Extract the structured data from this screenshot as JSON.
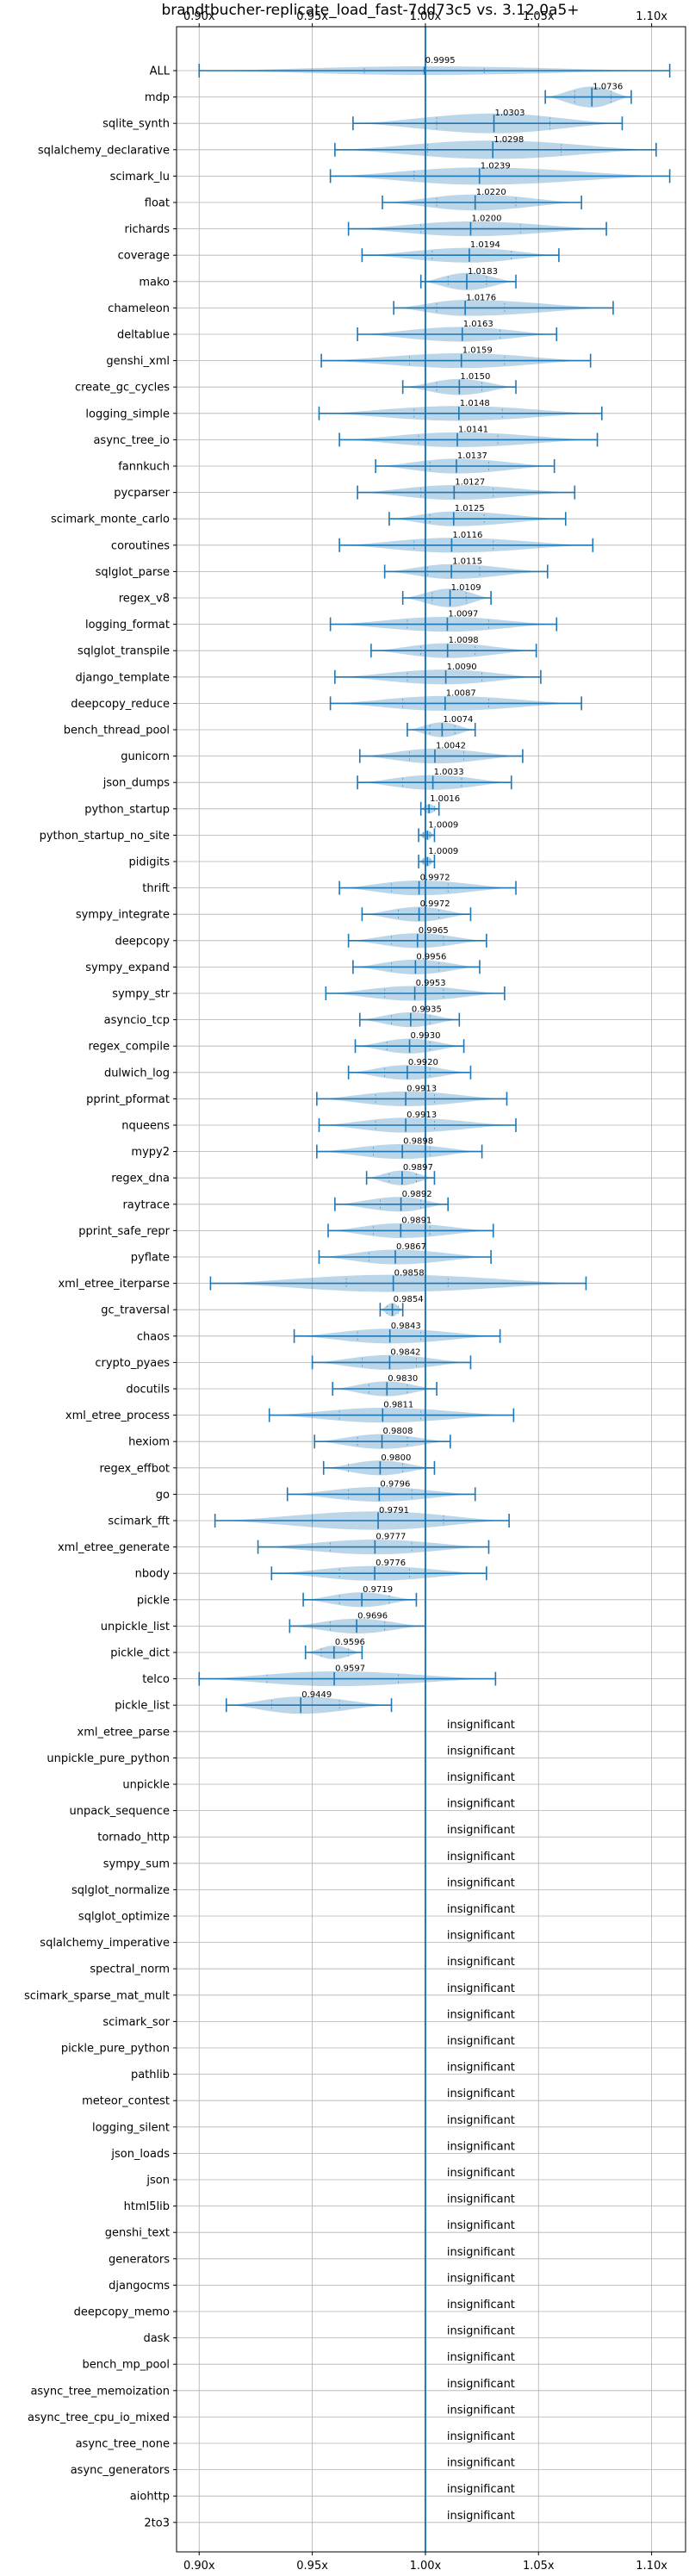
{
  "chart_data": {
    "type": "violin",
    "title": "brandtbucher-replicate_load_fast-7dd73c5 vs. 3.12.0a5+",
    "xlim": [
      0.89,
      1.115
    ],
    "xticks": [
      0.9,
      0.95,
      1.0,
      1.05,
      1.1
    ],
    "xtick_labels": [
      "0.90x",
      "0.95x",
      "1.00x",
      "1.05x",
      "1.10x"
    ],
    "reference_line": 1.0,
    "grid": true,
    "insignificant_label": "insignificant",
    "rows": [
      {
        "name": "ALL",
        "median": 0.9995,
        "label": "0.9995",
        "min": 0.9,
        "max": 1.108,
        "q1": 0.973,
        "q3": 1.026,
        "width": 0.35
      },
      {
        "name": "mdp",
        "median": 1.0736,
        "label": "1.0736",
        "min": 1.053,
        "max": 1.091,
        "q1": 1.066,
        "q3": 1.082,
        "width": 0.85
      },
      {
        "name": "sqlite_synth",
        "median": 1.0303,
        "label": "1.0303",
        "min": 0.968,
        "max": 1.087,
        "q1": 1.005,
        "q3": 1.055,
        "width": 0.8
      },
      {
        "name": "sqlalchemy_declarative",
        "median": 1.0298,
        "label": "1.0298",
        "min": 0.96,
        "max": 1.102,
        "q1": 1.001,
        "q3": 1.06,
        "width": 0.75
      },
      {
        "name": "scimark_lu",
        "median": 1.0239,
        "label": "1.0239",
        "min": 0.958,
        "max": 1.108,
        "q1": 0.995,
        "q3": 1.05,
        "width": 0.7
      },
      {
        "name": "float",
        "median": 1.022,
        "label": "1.0220",
        "min": 0.981,
        "max": 1.069,
        "q1": 1.005,
        "q3": 1.04,
        "width": 0.65
      },
      {
        "name": "richards",
        "median": 1.02,
        "label": "1.0200",
        "min": 0.966,
        "max": 1.08,
        "q1": 0.998,
        "q3": 1.042,
        "width": 0.6
      },
      {
        "name": "coverage",
        "median": 1.0194,
        "label": "1.0194",
        "min": 0.972,
        "max": 1.059,
        "q1": 1.003,
        "q3": 1.038,
        "width": 0.6
      },
      {
        "name": "mako",
        "median": 1.0183,
        "label": "1.0183",
        "min": 0.998,
        "max": 1.04,
        "q1": 1.01,
        "q3": 1.027,
        "width": 0.7
      },
      {
        "name": "chameleon",
        "median": 1.0176,
        "label": "1.0176",
        "min": 0.986,
        "max": 1.083,
        "q1": 1.005,
        "q3": 1.035,
        "width": 0.65
      },
      {
        "name": "deltablue",
        "median": 1.0163,
        "label": "1.0163",
        "min": 0.97,
        "max": 1.058,
        "q1": 1.0,
        "q3": 1.033,
        "width": 0.6
      },
      {
        "name": "genshi_xml",
        "median": 1.0159,
        "label": "1.0159",
        "min": 0.954,
        "max": 1.073,
        "q1": 0.993,
        "q3": 1.035,
        "width": 0.6
      },
      {
        "name": "create_gc_cycles",
        "median": 1.015,
        "label": "1.0150",
        "min": 0.99,
        "max": 1.04,
        "q1": 1.005,
        "q3": 1.025,
        "width": 0.65
      },
      {
        "name": "logging_simple",
        "median": 1.0148,
        "label": "1.0148",
        "min": 0.953,
        "max": 1.078,
        "q1": 0.995,
        "q3": 1.034,
        "width": 0.6
      },
      {
        "name": "async_tree_io",
        "median": 1.0141,
        "label": "1.0141",
        "min": 0.962,
        "max": 1.076,
        "q1": 0.997,
        "q3": 1.032,
        "width": 0.6
      },
      {
        "name": "fannkuch",
        "median": 1.0137,
        "label": "1.0137",
        "min": 0.978,
        "max": 1.057,
        "q1": 1.002,
        "q3": 1.028,
        "width": 0.6
      },
      {
        "name": "pycparser",
        "median": 1.0127,
        "label": "1.0127",
        "min": 0.97,
        "max": 1.066,
        "q1": 0.998,
        "q3": 1.03,
        "width": 0.6
      },
      {
        "name": "scimark_monte_carlo",
        "median": 1.0125,
        "label": "1.0125",
        "min": 0.984,
        "max": 1.062,
        "q1": 1.002,
        "q3": 1.026,
        "width": 0.6
      },
      {
        "name": "coroutines",
        "median": 1.0116,
        "label": "1.0116",
        "min": 0.962,
        "max": 1.074,
        "q1": 0.995,
        "q3": 1.03,
        "width": 0.6
      },
      {
        "name": "sqlglot_parse",
        "median": 1.0115,
        "label": "1.0115",
        "min": 0.982,
        "max": 1.054,
        "q1": 1.001,
        "q3": 1.024,
        "width": 0.6
      },
      {
        "name": "regex_v8",
        "median": 1.0109,
        "label": "1.0109",
        "min": 0.99,
        "max": 1.029,
        "q1": 1.003,
        "q3": 1.018,
        "width": 0.75
      },
      {
        "name": "logging_format",
        "median": 1.0097,
        "label": "1.0097",
        "min": 0.958,
        "max": 1.058,
        "q1": 0.992,
        "q3": 1.028,
        "width": 0.6
      },
      {
        "name": "sqlglot_transpile",
        "median": 1.0098,
        "label": "1.0098",
        "min": 0.976,
        "max": 1.049,
        "q1": 0.998,
        "q3": 1.022,
        "width": 0.6
      },
      {
        "name": "django_template",
        "median": 1.009,
        "label": "1.0090",
        "min": 0.96,
        "max": 1.051,
        "q1": 0.992,
        "q3": 1.025,
        "width": 0.6
      },
      {
        "name": "deepcopy_reduce",
        "median": 1.0087,
        "label": "1.0087",
        "min": 0.958,
        "max": 1.069,
        "q1": 0.99,
        "q3": 1.028,
        "width": 0.6
      },
      {
        "name": "bench_thread_pool",
        "median": 1.0074,
        "label": "1.0074",
        "min": 0.992,
        "max": 1.022,
        "q1": 1.002,
        "q3": 1.013,
        "width": 0.6
      },
      {
        "name": "gunicorn",
        "median": 1.0042,
        "label": "1.0042",
        "min": 0.971,
        "max": 1.043,
        "q1": 0.993,
        "q3": 1.017,
        "width": 0.6
      },
      {
        "name": "json_dumps",
        "median": 1.0033,
        "label": "1.0033",
        "min": 0.97,
        "max": 1.038,
        "q1": 0.99,
        "q3": 1.016,
        "width": 0.6
      },
      {
        "name": "python_startup",
        "median": 1.0016,
        "label": "1.0016",
        "min": 0.998,
        "max": 1.006,
        "q1": 1.0,
        "q3": 1.004,
        "width": 0.4
      },
      {
        "name": "python_startup_no_site",
        "median": 1.0009,
        "label": "1.0009",
        "min": 0.997,
        "max": 1.004,
        "q1": 0.999,
        "q3": 1.002,
        "width": 0.4
      },
      {
        "name": "pidigits",
        "median": 1.0009,
        "label": "1.0009",
        "min": 0.997,
        "max": 1.004,
        "q1": 0.999,
        "q3": 1.002,
        "width": 0.4
      },
      {
        "name": "thrift",
        "median": 0.9972,
        "label": "0.9972",
        "min": 0.962,
        "max": 1.04,
        "q1": 0.985,
        "q3": 1.01,
        "width": 0.6
      },
      {
        "name": "sympy_integrate",
        "median": 0.9972,
        "label": "0.9972",
        "min": 0.972,
        "max": 1.02,
        "q1": 0.988,
        "q3": 1.006,
        "width": 0.6
      },
      {
        "name": "deepcopy",
        "median": 0.9965,
        "label": "0.9965",
        "min": 0.966,
        "max": 1.027,
        "q1": 0.985,
        "q3": 1.008,
        "width": 0.6
      },
      {
        "name": "sympy_expand",
        "median": 0.9956,
        "label": "0.9956",
        "min": 0.968,
        "max": 1.024,
        "q1": 0.985,
        "q3": 1.006,
        "width": 0.6
      },
      {
        "name": "sympy_str",
        "median": 0.9953,
        "label": "0.9953",
        "min": 0.956,
        "max": 1.035,
        "q1": 0.982,
        "q3": 1.008,
        "width": 0.6
      },
      {
        "name": "asyncio_tcp",
        "median": 0.9935,
        "label": "0.9935",
        "min": 0.971,
        "max": 1.015,
        "q1": 0.985,
        "q3": 1.002,
        "width": 0.6
      },
      {
        "name": "regex_compile",
        "median": 0.993,
        "label": "0.9930",
        "min": 0.969,
        "max": 1.017,
        "q1": 0.983,
        "q3": 1.002,
        "width": 0.6
      },
      {
        "name": "dulwich_log",
        "median": 0.992,
        "label": "0.9920",
        "min": 0.966,
        "max": 1.02,
        "q1": 0.982,
        "q3": 1.002,
        "width": 0.6
      },
      {
        "name": "pprint_pformat",
        "median": 0.9913,
        "label": "0.9913",
        "min": 0.952,
        "max": 1.036,
        "q1": 0.978,
        "q3": 1.004,
        "width": 0.6
      },
      {
        "name": "nqueens",
        "median": 0.9913,
        "label": "0.9913",
        "min": 0.953,
        "max": 1.04,
        "q1": 0.978,
        "q3": 1.004,
        "width": 0.6
      },
      {
        "name": "mypy2",
        "median": 0.9898,
        "label": "0.9898",
        "min": 0.952,
        "max": 1.025,
        "q1": 0.977,
        "q3": 1.002,
        "width": 0.6
      },
      {
        "name": "regex_dna",
        "median": 0.9897,
        "label": "0.9897",
        "min": 0.974,
        "max": 1.004,
        "q1": 0.984,
        "q3": 0.996,
        "width": 0.6
      },
      {
        "name": "raytrace",
        "median": 0.9892,
        "label": "0.9892",
        "min": 0.96,
        "max": 1.01,
        "q1": 0.98,
        "q3": 0.998,
        "width": 0.6
      },
      {
        "name": "pprint_safe_repr",
        "median": 0.9891,
        "label": "0.9891",
        "min": 0.957,
        "max": 1.03,
        "q1": 0.977,
        "q3": 1.002,
        "width": 0.6
      },
      {
        "name": "pyflate",
        "median": 0.9867,
        "label": "0.9867",
        "min": 0.953,
        "max": 1.029,
        "q1": 0.975,
        "q3": 1.0,
        "width": 0.6
      },
      {
        "name": "xml_etree_iterparse",
        "median": 0.9858,
        "label": "0.9858",
        "min": 0.905,
        "max": 1.071,
        "q1": 0.965,
        "q3": 1.01,
        "width": 0.7
      },
      {
        "name": "gc_traversal",
        "median": 0.9854,
        "label": "0.9854",
        "min": 0.98,
        "max": 0.99,
        "q1": 0.983,
        "q3": 0.988,
        "width": 0.55
      },
      {
        "name": "chaos",
        "median": 0.9843,
        "label": "0.9843",
        "min": 0.942,
        "max": 1.033,
        "q1": 0.97,
        "q3": 0.998,
        "width": 0.6
      },
      {
        "name": "crypto_pyaes",
        "median": 0.9842,
        "label": "0.9842",
        "min": 0.95,
        "max": 1.02,
        "q1": 0.972,
        "q3": 0.996,
        "width": 0.6
      },
      {
        "name": "docutils",
        "median": 0.983,
        "label": "0.9830",
        "min": 0.959,
        "max": 1.005,
        "q1": 0.975,
        "q3": 0.992,
        "width": 0.6
      },
      {
        "name": "xml_etree_process",
        "median": 0.9811,
        "label": "0.9811",
        "min": 0.931,
        "max": 1.039,
        "q1": 0.962,
        "q3": 0.998,
        "width": 0.6
      },
      {
        "name": "hexiom",
        "median": 0.9808,
        "label": "0.9808",
        "min": 0.951,
        "max": 1.011,
        "q1": 0.97,
        "q3": 0.992,
        "width": 0.6
      },
      {
        "name": "regex_effbot",
        "median": 0.98,
        "label": "0.9800",
        "min": 0.955,
        "max": 1.004,
        "q1": 0.966,
        "q3": 0.99,
        "width": 0.6
      },
      {
        "name": "go",
        "median": 0.9796,
        "label": "0.9796",
        "min": 0.939,
        "max": 1.022,
        "q1": 0.966,
        "q3": 0.994,
        "width": 0.6
      },
      {
        "name": "scimark_fft",
        "median": 0.9791,
        "label": "0.9791",
        "min": 0.907,
        "max": 1.037,
        "q1": 0.95,
        "q3": 1.008,
        "width": 0.75
      },
      {
        "name": "xml_etree_generate",
        "median": 0.9777,
        "label": "0.9777",
        "min": 0.926,
        "max": 1.028,
        "q1": 0.958,
        "q3": 0.994,
        "width": 0.6
      },
      {
        "name": "nbody",
        "median": 0.9776,
        "label": "0.9776",
        "min": 0.932,
        "max": 1.027,
        "q1": 0.962,
        "q3": 0.993,
        "width": 0.6
      },
      {
        "name": "pickle",
        "median": 0.9719,
        "label": "0.9719",
        "min": 0.946,
        "max": 0.996,
        "q1": 0.962,
        "q3": 0.984,
        "width": 0.6
      },
      {
        "name": "unpickle_list",
        "median": 0.9696,
        "label": "0.9696",
        "min": 0.94,
        "max": 1.0,
        "q1": 0.958,
        "q3": 0.982,
        "width": 0.6
      },
      {
        "name": "pickle_dict",
        "median": 0.9596,
        "label": "0.9596",
        "min": 0.947,
        "max": 0.972,
        "q1": 0.954,
        "q3": 0.966,
        "width": 0.55
      },
      {
        "name": "telco",
        "median": 0.9597,
        "label": "0.9597",
        "min": 0.9,
        "max": 1.031,
        "q1": 0.93,
        "q3": 0.988,
        "width": 0.6
      },
      {
        "name": "pickle_list",
        "median": 0.9449,
        "label": "0.9449",
        "min": 0.912,
        "max": 0.985,
        "q1": 0.932,
        "q3": 0.962,
        "width": 0.7
      },
      {
        "name": "xml_etree_parse",
        "insignificant": true
      },
      {
        "name": "unpickle_pure_python",
        "insignificant": true
      },
      {
        "name": "unpickle",
        "insignificant": true
      },
      {
        "name": "unpack_sequence",
        "insignificant": true
      },
      {
        "name": "tornado_http",
        "insignificant": true
      },
      {
        "name": "sympy_sum",
        "insignificant": true
      },
      {
        "name": "sqlglot_normalize",
        "insignificant": true
      },
      {
        "name": "sqlglot_optimize",
        "insignificant": true
      },
      {
        "name": "sqlalchemy_imperative",
        "insignificant": true
      },
      {
        "name": "spectral_norm",
        "insignificant": true
      },
      {
        "name": "scimark_sparse_mat_mult",
        "insignificant": true
      },
      {
        "name": "scimark_sor",
        "insignificant": true
      },
      {
        "name": "pickle_pure_python",
        "insignificant": true
      },
      {
        "name": "pathlib",
        "insignificant": true
      },
      {
        "name": "meteor_contest",
        "insignificant": true
      },
      {
        "name": "logging_silent",
        "insignificant": true
      },
      {
        "name": "json_loads",
        "insignificant": true
      },
      {
        "name": "json",
        "insignificant": true
      },
      {
        "name": "html5lib",
        "insignificant": true
      },
      {
        "name": "genshi_text",
        "insignificant": true
      },
      {
        "name": "generators",
        "insignificant": true
      },
      {
        "name": "djangocms",
        "insignificant": true
      },
      {
        "name": "deepcopy_memo",
        "insignificant": true
      },
      {
        "name": "dask",
        "insignificant": true
      },
      {
        "name": "bench_mp_pool",
        "insignificant": true
      },
      {
        "name": "async_tree_memoization",
        "insignificant": true
      },
      {
        "name": "async_tree_cpu_io_mixed",
        "insignificant": true
      },
      {
        "name": "async_tree_none",
        "insignificant": true
      },
      {
        "name": "async_generators",
        "insignificant": true
      },
      {
        "name": "aiohttp",
        "insignificant": true
      },
      {
        "name": "2to3",
        "insignificant": true
      }
    ]
  },
  "colors": {
    "series": "#1f77b4",
    "grid": "#b0b0b0"
  }
}
